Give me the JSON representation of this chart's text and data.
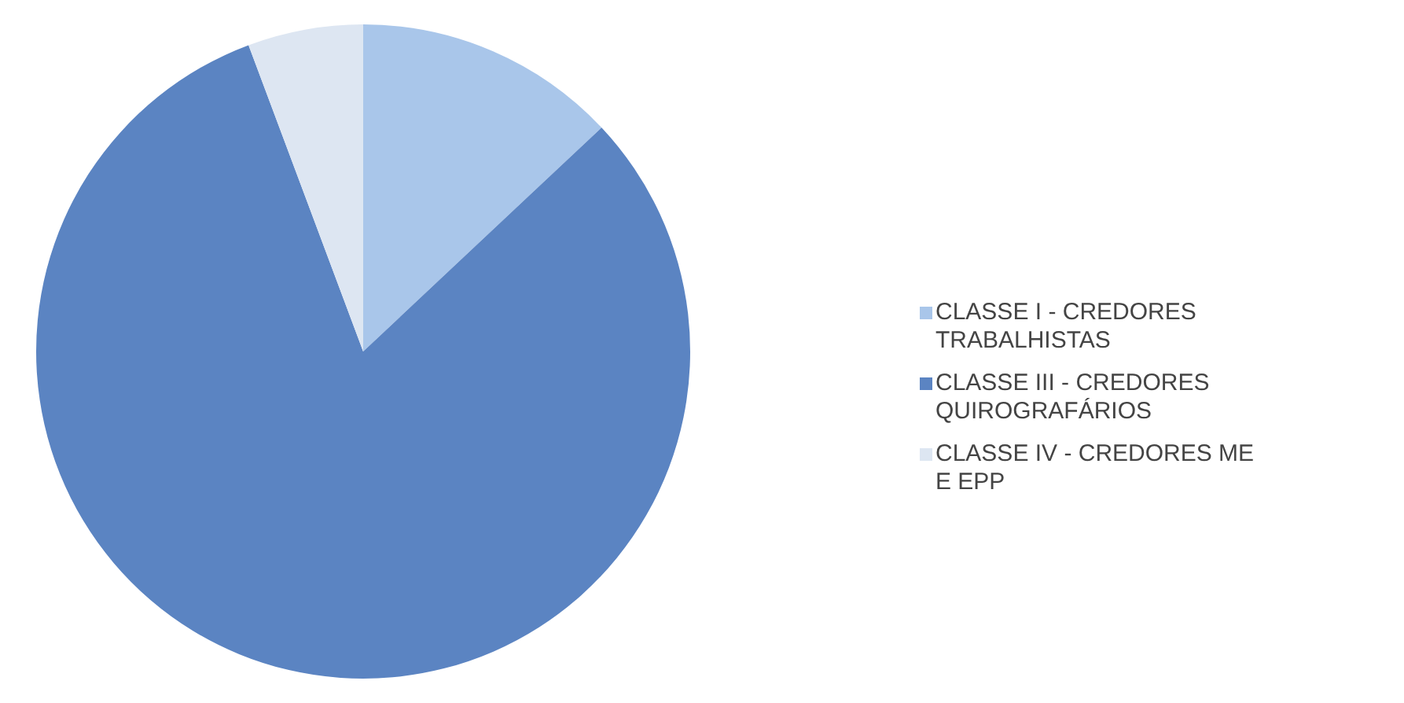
{
  "chart_data": {
    "type": "pie",
    "categories": [
      "CLASSE I - CREDORES TRABALHISTAS",
      "CLASSE III - CREDORES QUIROGRAFÁRIOS",
      "CLASSE IV - CREDORES ME E EPP"
    ],
    "values": [
      13,
      81.3,
      5.7
    ],
    "colors": [
      "#a9c6ea",
      "#5b84c2",
      "#dde6f2"
    ],
    "legend": "right"
  }
}
